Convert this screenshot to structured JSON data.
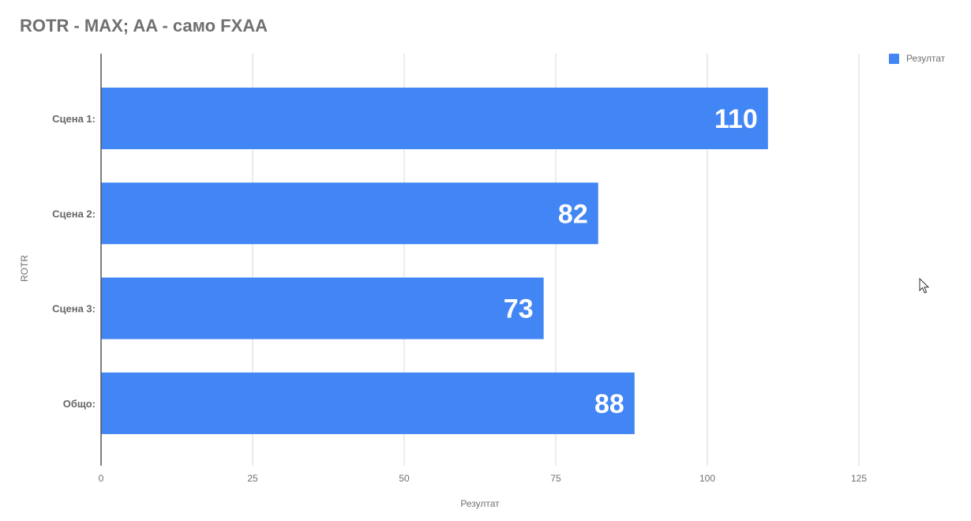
{
  "chart_data": {
    "type": "bar",
    "orientation": "horizontal",
    "title": "ROTR - MAX; AA - само FXAA",
    "xlabel": "Резултат",
    "ylabel": "ROTR",
    "categories": [
      "Сцена 1:",
      "Сцена 2:",
      "Сцена 3:",
      "Общо:"
    ],
    "series": [
      {
        "name": "Резултат",
        "values": [
          110,
          82,
          73,
          88
        ]
      }
    ],
    "xlim": [
      0,
      125
    ],
    "xticks": [
      0,
      25,
      50,
      75,
      100,
      125
    ],
    "data_labels": true,
    "grid": true,
    "legend_position": "top-right",
    "colors": {
      "bar": "#4285f4",
      "grid": "#d9d9d9",
      "axis": "#555555",
      "text": "#707070"
    }
  }
}
